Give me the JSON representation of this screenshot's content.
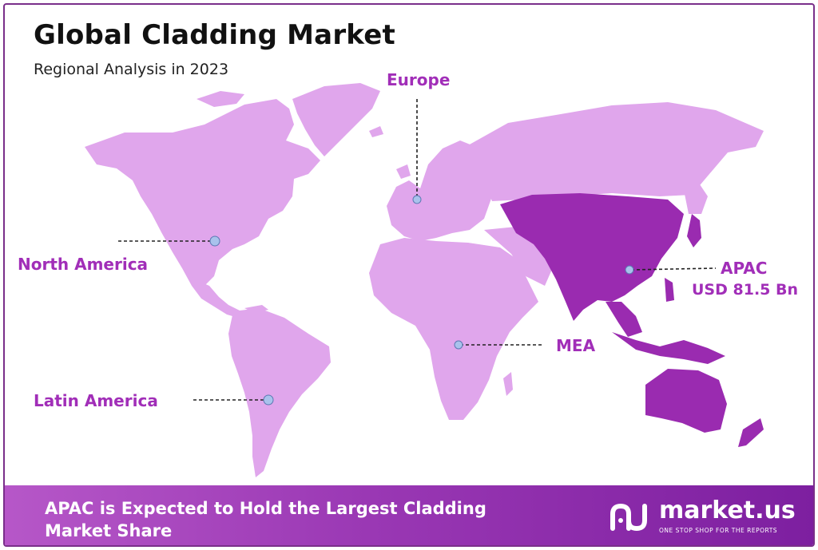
{
  "header": {
    "title": "Global Cladding Market",
    "subtitle": "Regional Analysis in 2023"
  },
  "regions": [
    {
      "name": "Europe",
      "value": ""
    },
    {
      "name": "North America",
      "value": ""
    },
    {
      "name": "APAC",
      "value": "USD 81.5 Bn"
    },
    {
      "name": "MEA",
      "value": ""
    },
    {
      "name": "Latin America",
      "value": ""
    }
  ],
  "footer": {
    "text": "APAC is Expected to Hold the Largest Cladding Market Share",
    "brand_name": "market.us",
    "brand_tagline": "ONE STOP SHOP FOR THE REPORTS"
  },
  "colors": {
    "land": "#e0a6ec",
    "highlight": "#9a2bb0",
    "label": "#a12eb8",
    "marker": "#a9c2ec",
    "footer_start": "#b657c8",
    "footer_end": "#7d1fa0",
    "border": "#7a2f8a"
  },
  "highlighted_region": "APAC"
}
